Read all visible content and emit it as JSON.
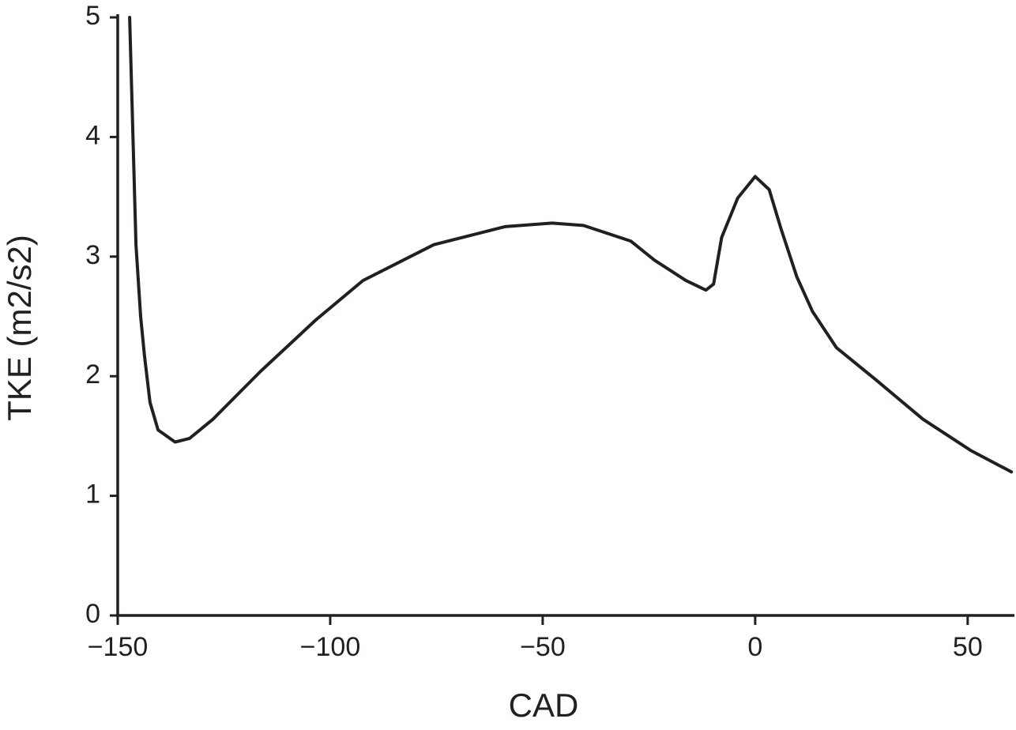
{
  "chart_data": {
    "type": "line",
    "x_label": "CAD",
    "y_label": "TKE (m2/s2)",
    "xlim": [
      -150,
      61
    ],
    "ylim": [
      0,
      5
    ],
    "xticks": [
      {
        "value": -150,
        "label": "−150"
      },
      {
        "value": -100,
        "label": "−100"
      },
      {
        "value": -50,
        "label": "−50"
      },
      0,
      50
    ],
    "yticks": [
      0,
      1,
      2,
      3,
      4,
      5
    ],
    "grid": false,
    "series": [
      {
        "color": "#231f20",
        "x": [
          -147.2,
          -145.7,
          -144.6,
          -143.7,
          -142.4,
          -140.5,
          -136.5,
          -133.1,
          -127.6,
          -116.4,
          -103.4,
          -92.3,
          -75.6,
          -58.9,
          -47.8,
          -40.4,
          -29.3,
          -23.7,
          -16.3,
          -11.6,
          -9.8,
          -7.9,
          -4.1,
          0,
          3.3,
          6.1,
          9.8,
          13.5,
          19.1,
          28.4,
          39.5,
          50.7,
          60.3
        ],
        "values": [
          5.0,
          3.1,
          2.5,
          2.17,
          1.78,
          1.55,
          1.45,
          1.48,
          1.64,
          2.04,
          2.47,
          2.8,
          3.1,
          3.25,
          3.28,
          3.26,
          3.13,
          2.97,
          2.8,
          2.72,
          2.77,
          3.16,
          3.49,
          3.67,
          3.56,
          3.23,
          2.83,
          2.54,
          2.24,
          1.97,
          1.64,
          1.38,
          1.2
        ]
      }
    ]
  }
}
